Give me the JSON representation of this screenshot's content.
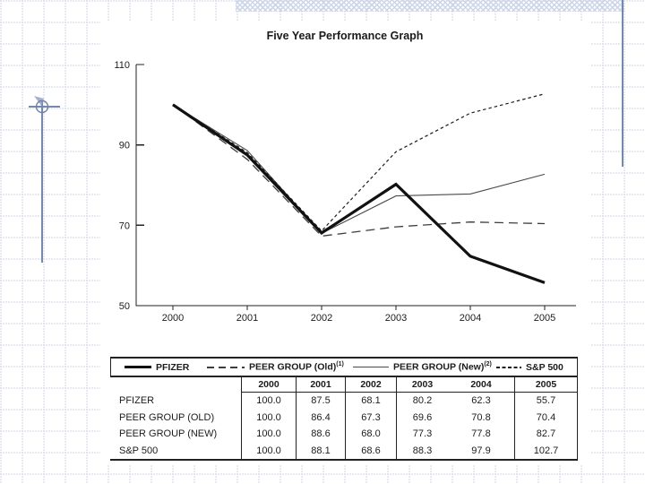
{
  "slide": {
    "title": "Five Year Performance Graph"
  },
  "chart_data": {
    "type": "line",
    "title": "Five Year Performance Graph",
    "x_labels": [
      "2000",
      "2001",
      "2002",
      "2003",
      "2004",
      "2005"
    ],
    "ylim": [
      50,
      110
    ],
    "yticks": [
      110,
      90,
      70,
      50
    ],
    "grid": false,
    "legend_position": "table-header-below-chart",
    "series": [
      {
        "name": "PFIZER",
        "table_label": "PFIZER",
        "footnote": "",
        "style": "solid-thick",
        "values": [
          100.0,
          87.5,
          68.1,
          80.2,
          62.3,
          55.7
        ]
      },
      {
        "name": "PEER GROUP (Old)",
        "table_label": "PEER GROUP (OLD)",
        "footnote": "(1)",
        "style": "long-dash",
        "values": [
          100.0,
          86.4,
          67.3,
          69.6,
          70.8,
          70.4
        ]
      },
      {
        "name": "PEER GROUP (New)",
        "table_label": "PEER GROUP (NEW)",
        "footnote": "(2)",
        "style": "solid-thin",
        "values": [
          100.0,
          88.6,
          68.0,
          77.3,
          77.8,
          82.7
        ]
      },
      {
        "name": "S&P 500",
        "table_label": "S&P 500",
        "footnote": "",
        "style": "short-dash",
        "values": [
          100.0,
          88.1,
          68.6,
          88.3,
          97.9,
          102.7
        ]
      }
    ]
  },
  "colors": {
    "ink": "#1c1c1c",
    "decor_blue": "#7589ad",
    "hatch_blue": "#ccd6e8",
    "grid_dot": "#ccd3e2"
  }
}
